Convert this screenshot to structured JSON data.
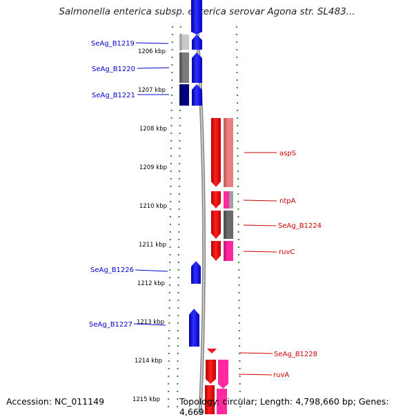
{
  "title": "Salmonella enterica subsp. enterica serovar Agona str. SL483...",
  "accession": "Accession: NC_011149",
  "topology": "Topology: circular; Length: 4,798,660 bp; Genes: 4,669",
  "scale_ticks": [
    "1206 kbp",
    "1207 kbp",
    "1208 kbp",
    "1209 kbp",
    "1210 kbp",
    "1211 kbp",
    "1212 kbp",
    "1213 kbp",
    "1214 kbp",
    "1215 kbp"
  ],
  "left_genes": [
    "SeAg_B1219",
    "SeAg_B1220",
    "SeAg_B1221",
    "SeAg_B1226",
    "SeAg_B1227"
  ],
  "right_genes": [
    "aspS",
    "ntpA",
    "SeAg_B1224",
    "ruvC",
    "SeAg_B1228",
    "ruvA"
  ],
  "colors": {
    "forward": "#0000ff",
    "reverse": "#ff0000",
    "left_label": "#0000cc",
    "right_label": "#cc0000",
    "backbone": "#888888",
    "dots": "#2a8a2a"
  }
}
